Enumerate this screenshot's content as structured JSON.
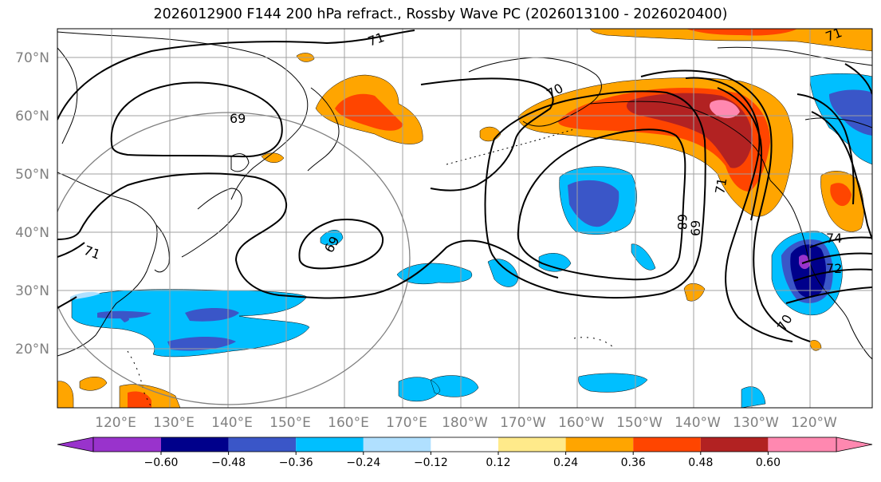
{
  "title": "2026012900 F144 200 hPa refract., Rossby Wave PC (2026013100 - 2026020400)",
  "map": {
    "lat_labels": [
      "70°N",
      "60°N",
      "50°N",
      "40°N",
      "30°N",
      "20°N"
    ],
    "lon_labels": [
      "120°E",
      "130°E",
      "140°E",
      "150°E",
      "160°E",
      "170°E",
      "180°W",
      "170°W",
      "160°W",
      "150°W",
      "140°W",
      "130°W",
      "120°W"
    ],
    "contour_labels": [
      "71",
      "69",
      "69",
      "71",
      "70",
      "68",
      "69",
      "71",
      "70",
      "72",
      "74",
      "71"
    ],
    "colors": {
      "neg_extreme": "#9933cc",
      "neg_048": "#00008b",
      "neg_036": "#3a56c8",
      "neg_024": "#00bfff",
      "neg_012": "#b0e0ff",
      "neutral": "#ffffff",
      "pos_012": "#ffea8a",
      "pos_024": "#ffa500",
      "pos_036": "#ff4500",
      "pos_048": "#b22222",
      "pos_extreme": "#ff88b0",
      "grid": "#a0a0a0",
      "circle": "#808080"
    }
  },
  "colorbar": {
    "ticks": [
      "−0.60",
      "−0.48",
      "−0.36",
      "−0.24",
      "−0.12",
      "0.12",
      "0.24",
      "0.36",
      "0.48",
      "0.60"
    ],
    "segments": [
      "#9933cc",
      "#00008b",
      "#3a56c8",
      "#00bfff",
      "#b0e0ff",
      "#ffffff",
      "#ffea8a",
      "#ffa500",
      "#ff4500",
      "#b22222",
      "#ff88b0"
    ]
  }
}
